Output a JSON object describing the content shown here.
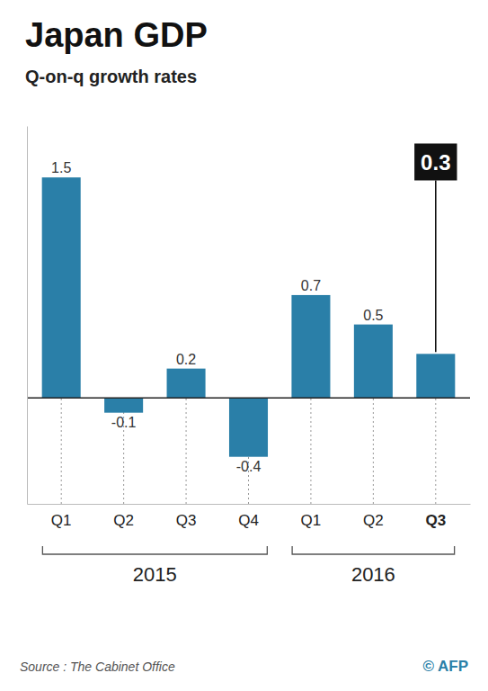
{
  "chart_data": {
    "type": "bar",
    "title": "Japan GDP",
    "subtitle": "Q-on-q growth rates",
    "categories": [
      "Q1",
      "Q2",
      "Q3",
      "Q4",
      "Q1",
      "Q2",
      "Q3"
    ],
    "category_groups": [
      "2015",
      "2015",
      "2015",
      "2015",
      "2016",
      "2016",
      "2016"
    ],
    "values": [
      1.5,
      -0.1,
      0.2,
      -0.4,
      0.7,
      0.5,
      0.3
    ],
    "color": "#2a7fa8",
    "ylim": [
      -0.72,
      1.85
    ],
    "grid": false,
    "data_labels": true,
    "tick_labels": "x",
    "source": "Source : The Cabinet Office",
    "credit": "© AFP"
  }
}
